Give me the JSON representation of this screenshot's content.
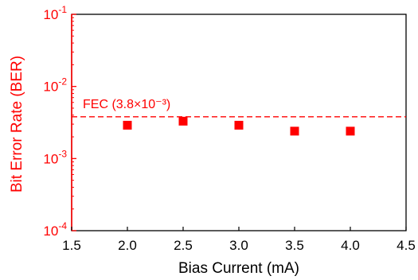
{
  "chart_data": {
    "type": "scatter",
    "title": "",
    "xlabel": "Bias Current (mA)",
    "ylabel": "Bit Error Rate (BER)",
    "xlim": [
      1.5,
      4.5
    ],
    "ylim": [
      0.0001,
      0.1
    ],
    "yscale": "log",
    "grid": false,
    "x_ticks": [
      {
        "value": 1.5,
        "label": "1.5"
      },
      {
        "value": 2.0,
        "label": "2.0"
      },
      {
        "value": 2.5,
        "label": "2.5"
      },
      {
        "value": 3.0,
        "label": "3.0"
      },
      {
        "value": 3.5,
        "label": "3.5"
      },
      {
        "value": 4.0,
        "label": "4.0"
      },
      {
        "value": 4.5,
        "label": "4.5"
      }
    ],
    "y_ticks": [
      {
        "value": 0.1,
        "base": "10",
        "exp": "-1"
      },
      {
        "value": 0.01,
        "base": "10",
        "exp": "-2"
      },
      {
        "value": 0.001,
        "base": "10",
        "exp": "-3"
      },
      {
        "value": 0.0001,
        "base": "10",
        "exp": "-4"
      }
    ],
    "series": [
      {
        "x": [
          2.0,
          2.5,
          3.0,
          3.5,
          4.0
        ],
        "y": [
          0.0029,
          0.0033,
          0.0029,
          0.0024,
          0.0024
        ],
        "marker": "square",
        "color": "#ff0000"
      }
    ],
    "threshold": {
      "value": 0.0038,
      "label": "FEC (3.8×10⁻³)",
      "style": "dashed",
      "color": "#ff0000"
    },
    "colors": {
      "accent": "#ff0000",
      "axis_frame": "#000000",
      "text": "#000000"
    }
  }
}
